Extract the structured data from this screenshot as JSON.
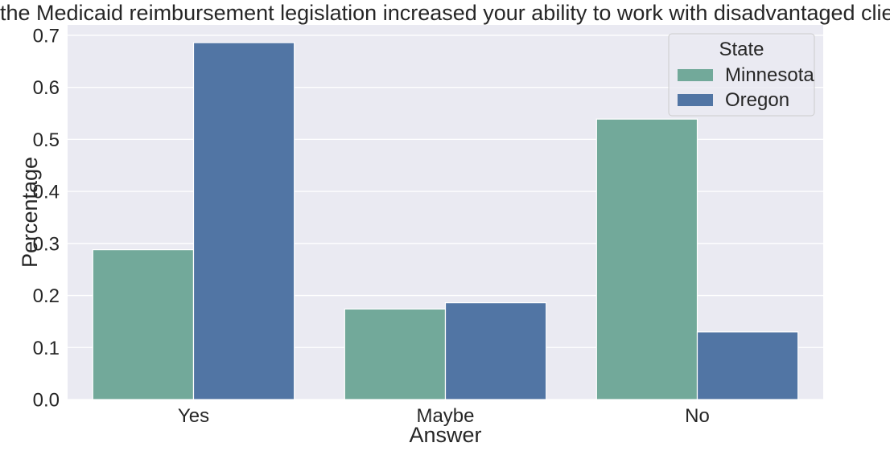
{
  "chart_data": {
    "type": "bar",
    "title": "'Has the Medicaid reimbursement legislation increased your ability to work with disadvantaged clients?'",
    "xlabel": "Answer",
    "ylabel": "Percentage",
    "categories": [
      "Yes",
      "Maybe",
      "No"
    ],
    "series": [
      {
        "name": "Minnesota",
        "values": [
          0.288,
          0.174,
          0.539
        ],
        "color": "#72a99a"
      },
      {
        "name": "Oregon",
        "values": [
          0.686,
          0.186,
          0.13
        ],
        "color": "#5175a4"
      }
    ],
    "ylim": [
      0,
      0.72
    ],
    "yticks": [
      "0.0",
      "0.1",
      "0.2",
      "0.3",
      "0.4",
      "0.5",
      "0.6",
      "0.7"
    ],
    "grid": true,
    "legend": {
      "title": "State",
      "position": "top-right"
    },
    "colors": {
      "plot_background": "#eaeaf2",
      "grid": "#ffffff",
      "text": "#262626"
    }
  }
}
